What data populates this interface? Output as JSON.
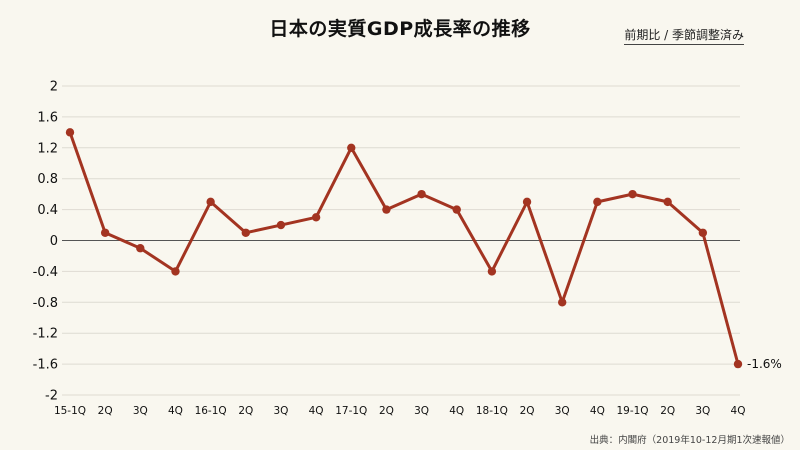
{
  "chart_data": {
    "type": "line",
    "title": "日本の実質GDP成長率の推移",
    "subtitle": "前期比 / 季節調整済み",
    "source": "出典：内閣府（2019年10-12月期1次速報値）",
    "categories": [
      "15-1Q",
      "2Q",
      "3Q",
      "4Q",
      "16-1Q",
      "2Q",
      "3Q",
      "4Q",
      "17-1Q",
      "2Q",
      "3Q",
      "4Q",
      "18-1Q",
      "2Q",
      "3Q",
      "4Q",
      "19-1Q",
      "2Q",
      "3Q",
      "4Q"
    ],
    "series": [
      {
        "values": [
          1.4,
          0.1,
          -0.1,
          -0.4,
          0.5,
          0.1,
          0.2,
          0.3,
          1.2,
          0.4,
          0.6,
          0.4,
          -0.4,
          0.5,
          -0.8,
          0.5,
          0.6,
          0.5,
          0.1,
          -1.6
        ]
      }
    ],
    "yticks": [
      "2",
      "1.6",
      "1.2",
      "0.8",
      "0.4",
      "0",
      "-0.4",
      "-0.8",
      "-1.2",
      "-1.6",
      "-2"
    ],
    "ylim": [
      -2,
      2
    ],
    "data_labels": [
      {
        "index": 19,
        "text": "-1.6%"
      }
    ],
    "grid": true,
    "color": "#a33421"
  }
}
